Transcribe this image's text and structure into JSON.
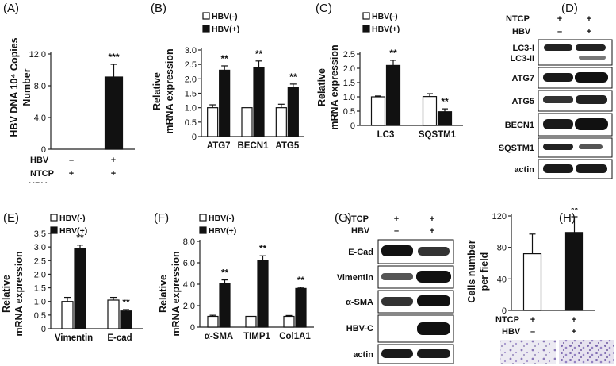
{
  "panels": {
    "A": {
      "letter": "(A)",
      "ylabel_line1": "HBV DNA 10⁴ Copies",
      "ylabel_line2": "Number",
      "conditions": [
        {
          "label": "HBV",
          "values": [
            "–",
            "+"
          ]
        },
        {
          "label": "NTCP",
          "values": [
            "+",
            "+"
          ]
        }
      ]
    },
    "B": {
      "letter": "(B)",
      "ylabel_line1": "Relative",
      "ylabel_line2": "mRNA expression"
    },
    "C": {
      "letter": "(C)",
      "ylabel_line1": "Relative",
      "ylabel_line2": "mRNA expression"
    },
    "D": {
      "letter": "(D)",
      "conditions": [
        {
          "label": "NTCP",
          "values": [
            "+",
            "+"
          ]
        },
        {
          "label": "HBV",
          "values": [
            "–",
            "+"
          ]
        }
      ],
      "rows": [
        "LC3-I",
        "LC3-II",
        "ATG7",
        "ATG5",
        "BECN1",
        "SQSTM1",
        "actin"
      ]
    },
    "E": {
      "letter": "(E)",
      "ylabel_line1": "Relative",
      "ylabel_line2": "mRNA expression"
    },
    "F": {
      "letter": "(F)",
      "ylabel_line1": "Relative",
      "ylabel_line2": "mRNA expression"
    },
    "G": {
      "letter": "(G)",
      "conditions": [
        {
          "label": "NTCP",
          "values": [
            "+",
            "+"
          ]
        },
        {
          "label": "HBV",
          "values": [
            "–",
            "+"
          ]
        }
      ],
      "rows": [
        "E-Cad",
        "Vimentin",
        "α-SMA",
        "HBV-C",
        "actin"
      ]
    },
    "H": {
      "letter": "(H)",
      "ylabel_line1": "Cells number",
      "ylabel_line2": "per field",
      "conditions": [
        {
          "label": "NTCP",
          "values": [
            "+",
            "+"
          ]
        },
        {
          "label": "HBV",
          "values": [
            "–",
            "+"
          ]
        }
      ]
    }
  },
  "chart_data": [
    {
      "panel": "A",
      "type": "bar",
      "categories": [
        "HBV– NTCP+",
        "HBV+ NTCP+"
      ],
      "values": [
        0,
        9.1
      ],
      "errors": [
        0,
        1.6
      ],
      "significance": [
        "",
        "***"
      ],
      "ylim": [
        0,
        12
      ],
      "yticks": [
        0,
        4.0,
        8.0,
        12.0
      ],
      "ytick_labels": [
        "0",
        "4.0",
        "8.0",
        "12.0"
      ],
      "ylabel": "HBV DNA 10⁴ Copies Number",
      "bar_styles": [
        "open",
        "filled"
      ]
    },
    {
      "panel": "B",
      "type": "bar",
      "categories": [
        "ATG7",
        "BECN1",
        "ATG5"
      ],
      "legend": [
        "HBV(-)",
        "HBV(+)"
      ],
      "legend_position": "top-left",
      "series": [
        {
          "values": [
            1.0,
            1.0,
            1.0
          ],
          "errors": [
            0.1,
            0.0,
            0.12
          ]
        },
        {
          "values": [
            2.3,
            2.4,
            1.7
          ],
          "errors": [
            0.15,
            0.22,
            0.12
          ]
        }
      ],
      "significance": [
        "**",
        "**",
        "**"
      ],
      "ylim": [
        0,
        3.0
      ],
      "yticks": [
        0,
        0.5,
        1.0,
        1.5,
        2.0,
        2.5,
        3.0
      ],
      "ytick_labels": [
        "0",
        "0.5",
        "1.0",
        "1.5",
        "2.0",
        "2.5",
        "3.0"
      ],
      "ylabel": "Relative mRNA expression"
    },
    {
      "panel": "C",
      "type": "bar",
      "categories": [
        "LC3",
        "SQSTM1"
      ],
      "legend": [
        "HBV(-)",
        "HBV(+)"
      ],
      "legend_position": "top-left",
      "series": [
        {
          "values": [
            1.0,
            1.01
          ],
          "errors": [
            0.03,
            0.1
          ]
        },
        {
          "values": [
            2.1,
            0.48
          ],
          "errors": [
            0.18,
            0.1
          ]
        }
      ],
      "significance": [
        "**",
        "**"
      ],
      "ylim": [
        0,
        2.5
      ],
      "yticks": [
        0,
        0.5,
        1.0,
        1.5,
        2.0,
        2.5
      ],
      "ytick_labels": [
        "0",
        "0.5",
        "1.0",
        "1.5",
        "2.0",
        "2.5"
      ],
      "ylabel": "Relative mRNA expression"
    },
    {
      "panel": "E",
      "type": "bar",
      "categories": [
        "Vimentin",
        "E-cad"
      ],
      "legend": [
        "HBV(-)",
        "HBV(+)"
      ],
      "legend_position": "top-left",
      "series": [
        {
          "values": [
            1.0,
            1.05
          ],
          "errors": [
            0.15,
            0.1
          ]
        },
        {
          "values": [
            2.95,
            0.65
          ],
          "errors": [
            0.12,
            0.05
          ]
        }
      ],
      "significance": [
        "**",
        "**"
      ],
      "ylim": [
        0,
        3.5
      ],
      "yticks": [
        0,
        0.5,
        1.0,
        1.5,
        2.0,
        2.5,
        3.0,
        3.5
      ],
      "ytick_labels": [
        "0",
        "0.5",
        "1.0",
        "1.5",
        "2.0",
        "2.5",
        "3.0",
        "3.5"
      ],
      "ylabel": "Relative mRNA expression"
    },
    {
      "panel": "F",
      "type": "bar",
      "categories": [
        "α-SMA",
        "TIMP1",
        "Col1A1"
      ],
      "legend": [
        "HBV(-)",
        "HBV(+)"
      ],
      "legend_position": "top-left",
      "series": [
        {
          "values": [
            1.0,
            1.0,
            1.0
          ],
          "errors": [
            0.1,
            0.0,
            0.08
          ]
        },
        {
          "values": [
            4.1,
            6.2,
            3.6
          ],
          "errors": [
            0.3,
            0.45,
            0.1
          ]
        }
      ],
      "significance": [
        "**",
        "**",
        "**"
      ],
      "ylim": [
        0,
        8.0
      ],
      "yticks": [
        0,
        2.0,
        4.0,
        6.0,
        8.0
      ],
      "ytick_labels": [
        "0",
        "2.0",
        "4.0",
        "6.0",
        "8.0"
      ],
      "ylabel": "Relative mRNA expression"
    },
    {
      "panel": "H",
      "type": "bar",
      "categories": [
        "NTCP+ HBV–",
        "NTCP+ HBV+"
      ],
      "values": [
        72,
        99
      ],
      "errors": [
        25,
        20
      ],
      "significance": [
        "",
        "**"
      ],
      "ylim": [
        0,
        120
      ],
      "yticks": [
        0,
        40,
        80,
        120
      ],
      "ytick_labels": [
        "0",
        "40",
        "80",
        "120"
      ],
      "ylabel": "Cells number per field",
      "bar_styles": [
        "open",
        "filled"
      ]
    }
  ]
}
